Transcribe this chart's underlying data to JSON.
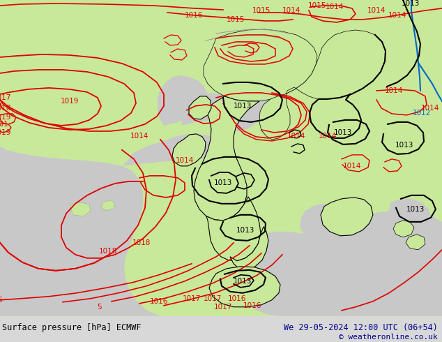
{
  "title_left": "Surface pressure [hPa] ECMWF",
  "title_right": "We 29-05-2024 12:00 UTC (06+54)",
  "copyright": "© weatheronline.co.uk",
  "land_color": "#c8e89a",
  "sea_color": "#c8c8c8",
  "red": "#dd0000",
  "black": "#000000",
  "blue": "#0066cc",
  "gray": "#999999",
  "footer_bg": "#d8d8d8",
  "figsize": [
    6.34,
    4.9
  ],
  "dpi": 100
}
